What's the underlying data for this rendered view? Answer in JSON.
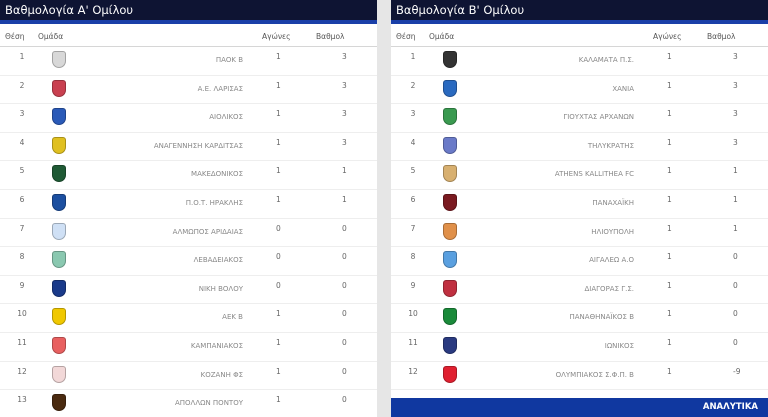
{
  "groupA": {
    "title": "Βαθμολογία Α' Ομίλου",
    "columns": {
      "pos": "Θέση",
      "team": "Ομάδα",
      "games": "Αγώνες",
      "points": "Βαθμολ"
    },
    "rows": [
      {
        "pos": "1",
        "team": "ΠΑΟΚ Β",
        "games": "1",
        "points": "3",
        "logo": "paok-crest-icon",
        "color": "#d8d8d8"
      },
      {
        "pos": "2",
        "team": "Α.Ε. ΛΑΡΙΣΑΣ",
        "games": "1",
        "points": "3",
        "logo": "larisa-crest-icon",
        "color": "#c94050"
      },
      {
        "pos": "3",
        "team": "ΑΙΟΛΙΚΟΣ",
        "games": "1",
        "points": "3",
        "logo": "aiolikos-crest-icon",
        "color": "#2a5ab8"
      },
      {
        "pos": "4",
        "team": "ΑΝΑΓΕΝΝΗΣΗ ΚΑΡΔΙΤΣΑΣ",
        "games": "1",
        "points": "3",
        "logo": "anagennisi-crest-icon",
        "color": "#e0c020"
      },
      {
        "pos": "5",
        "team": "ΜΑΚΕΔΟΝΙΚΟΣ",
        "games": "1",
        "points": "1",
        "logo": "makedonikos-crest-icon",
        "color": "#1f5a35"
      },
      {
        "pos": "6",
        "team": "Π.Ο.Τ. ΗΡΑΚΛΗΣ",
        "games": "1",
        "points": "1",
        "logo": "iraklis-crest-icon",
        "color": "#1c4fa0"
      },
      {
        "pos": "7",
        "team": "ΑΛΜΩΠΟΣ ΑΡΙΔΑΙΑΣ",
        "games": "0",
        "points": "0",
        "logo": "almopos-crest-icon",
        "color": "#cfe0f5"
      },
      {
        "pos": "8",
        "team": "ΛΕΒΑΔΕΙΑΚΟΣ",
        "games": "0",
        "points": "0",
        "logo": "levadiakos-crest-icon",
        "color": "#8ac8b0"
      },
      {
        "pos": "9",
        "team": "ΝΙΚΗ ΒΟΛΟΥ",
        "games": "0",
        "points": "0",
        "logo": "niki-volou-crest-icon",
        "color": "#1a3a8a"
      },
      {
        "pos": "10",
        "team": "ΑΕΚ Β",
        "games": "1",
        "points": "0",
        "logo": "aek-crest-icon",
        "color": "#f0c800"
      },
      {
        "pos": "11",
        "team": "ΚΑΜΠΑΝΙΑΚΟΣ",
        "games": "1",
        "points": "0",
        "logo": "kampaniakos-crest-icon",
        "color": "#e86060"
      },
      {
        "pos": "12",
        "team": "ΚΟΖΑΝΗ ΦΣ",
        "games": "1",
        "points": "0",
        "logo": "kozani-crest-icon",
        "color": "#f2d8d8"
      },
      {
        "pos": "13",
        "team": "ΑΠΟΛΛΩΝ ΠΟΝΤΟΥ",
        "games": "1",
        "points": "0",
        "logo": "apollon-pontou-crest-icon",
        "color": "#4a2a10"
      }
    ]
  },
  "groupB": {
    "title": "Βαθμολογία Β' Ομίλου",
    "columns": {
      "pos": "Θέση",
      "team": "Ομάδα",
      "games": "Αγώνες",
      "points": "Βαθμολ"
    },
    "rows": [
      {
        "pos": "1",
        "team": "ΚΑΛΑΜΑΤΑ Π.Σ.",
        "games": "1",
        "points": "3",
        "logo": "kalamata-crest-icon",
        "color": "#333333"
      },
      {
        "pos": "2",
        "team": "ΧΑΝΙΑ",
        "games": "1",
        "points": "3",
        "logo": "chania-crest-icon",
        "color": "#2a6ac0"
      },
      {
        "pos": "3",
        "team": "ΓΙΟΥΧΤΑΣ ΑΡΧΑΝΩΝ",
        "games": "1",
        "points": "3",
        "logo": "giouchtas-crest-icon",
        "color": "#3a9a50"
      },
      {
        "pos": "4",
        "team": "ΤΗΛΥΚΡΑΤΗΣ",
        "games": "1",
        "points": "3",
        "logo": "tilikratis-crest-icon",
        "color": "#6a7ac8"
      },
      {
        "pos": "5",
        "team": "ATHENS KALLITHEA FC",
        "games": "1",
        "points": "1",
        "logo": "kallithea-crest-icon",
        "color": "#d8b070"
      },
      {
        "pos": "6",
        "team": "ΠΑΝΑΧΑΪΚΗ",
        "games": "1",
        "points": "1",
        "logo": "panachaiki-crest-icon",
        "color": "#7a1a20"
      },
      {
        "pos": "7",
        "team": "ΗΛΙΟΥΠΟΛΗ",
        "games": "1",
        "points": "1",
        "logo": "ilioupoli-crest-icon",
        "color": "#e0904a"
      },
      {
        "pos": "8",
        "team": "ΑΙΓΑΛΕΩ Α.Ο",
        "games": "1",
        "points": "0",
        "logo": "aigaleo-crest-icon",
        "color": "#5aa0e0"
      },
      {
        "pos": "9",
        "team": "ΔΙΑΓΟΡΑΣ Γ.Σ.",
        "games": "1",
        "points": "0",
        "logo": "diagoras-crest-icon",
        "color": "#c03040"
      },
      {
        "pos": "10",
        "team": "ΠΑΝΑΘΗΝΑΪΚΟΣ Β",
        "games": "1",
        "points": "0",
        "logo": "panathinaikos-crest-icon",
        "color": "#1a8a3a"
      },
      {
        "pos": "11",
        "team": "ΙΩΝΙΚΟΣ",
        "games": "1",
        "points": "0",
        "logo": "ionikos-crest-icon",
        "color": "#2a3a80"
      },
      {
        "pos": "12",
        "team": "ΟΛΥΜΠΙΑΚΟΣ Σ.Φ.Π. Β",
        "games": "1",
        "points": "-9",
        "logo": "olympiakos-crest-icon",
        "color": "#e02030"
      }
    ],
    "footer_label": "ΑΝΑΛΥΤΙΚΑ"
  }
}
